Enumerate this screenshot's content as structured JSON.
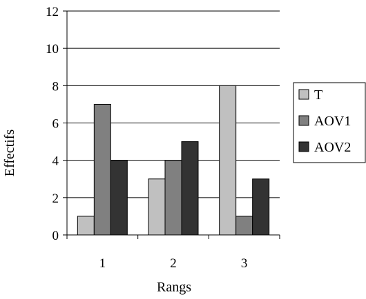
{
  "chart_data": {
    "type": "bar",
    "title": "",
    "xlabel": "Rangs",
    "ylabel": "Effectifs",
    "categories": [
      "1",
      "2",
      "3"
    ],
    "series": [
      {
        "name": "T",
        "values": [
          1,
          3,
          8
        ],
        "color": "#c0c0c0"
      },
      {
        "name": "AOV1",
        "values": [
          7,
          4,
          1
        ],
        "color": "#808080"
      },
      {
        "name": "AOV2",
        "values": [
          4,
          5,
          3
        ],
        "color": "#333333"
      }
    ],
    "ylim": [
      0,
      12
    ],
    "yticks": [
      "0",
      "2",
      "4",
      "6",
      "8",
      "10",
      "12"
    ],
    "grid": true,
    "legend_position": "right"
  }
}
